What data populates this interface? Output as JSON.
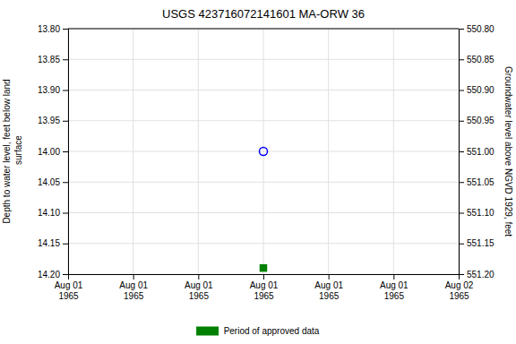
{
  "chart_data": {
    "type": "scatter",
    "title": "USGS 423716072141601 MA-ORW   36",
    "y_label": "Depth to water level, feet below land\n surface",
    "y2_label": "Groundwater level above NGVD 1929, feet",
    "categories": [
      "Aug 01\n1965",
      "Aug 01\n1965",
      "Aug 01\n1965",
      "Aug 01\n1965",
      "Aug 01\n1965",
      "Aug 01\n1965",
      "Aug 02\n1965"
    ],
    "series": [
      {
        "color": "blue",
        "marker": "open-circle",
        "values": [
          null,
          null,
          null,
          14.0,
          null,
          null,
          null
        ]
      },
      {
        "name": "Period of approved data",
        "color": "green",
        "marker": "square",
        "values": [
          null,
          null,
          null,
          14.19,
          null,
          null,
          null
        ]
      }
    ],
    "ylim": [
      14.2,
      13.8
    ],
    "yticks": [
      {
        "value": 13.8,
        "label": "13.80"
      },
      {
        "value": 13.85,
        "label": "13.85"
      },
      {
        "value": 13.9,
        "label": "13.90"
      },
      {
        "value": 13.95,
        "label": "13.95"
      },
      {
        "value": 14.0,
        "label": "14.00"
      },
      {
        "value": 14.05,
        "label": "14.05"
      },
      {
        "value": 14.1,
        "label": "14.10"
      },
      {
        "value": 14.15,
        "label": "14.15"
      },
      {
        "value": 14.2,
        "label": "14.20"
      }
    ],
    "y2lim": [
      551.2,
      550.8
    ],
    "y2ticks": [
      {
        "value": 550.8,
        "label": "550.80"
      },
      {
        "value": 550.85,
        "label": "550.85"
      },
      {
        "value": 550.9,
        "label": "550.90"
      },
      {
        "value": 550.95,
        "label": "550.95"
      },
      {
        "value": 551.0,
        "label": "551.00"
      },
      {
        "value": 551.05,
        "label": "551.05"
      },
      {
        "value": 551.1,
        "label": "551.10"
      },
      {
        "value": 551.15,
        "label": "551.15"
      },
      {
        "value": 551.2,
        "label": "551.20"
      }
    ],
    "grid": true,
    "legend": "bottom"
  }
}
